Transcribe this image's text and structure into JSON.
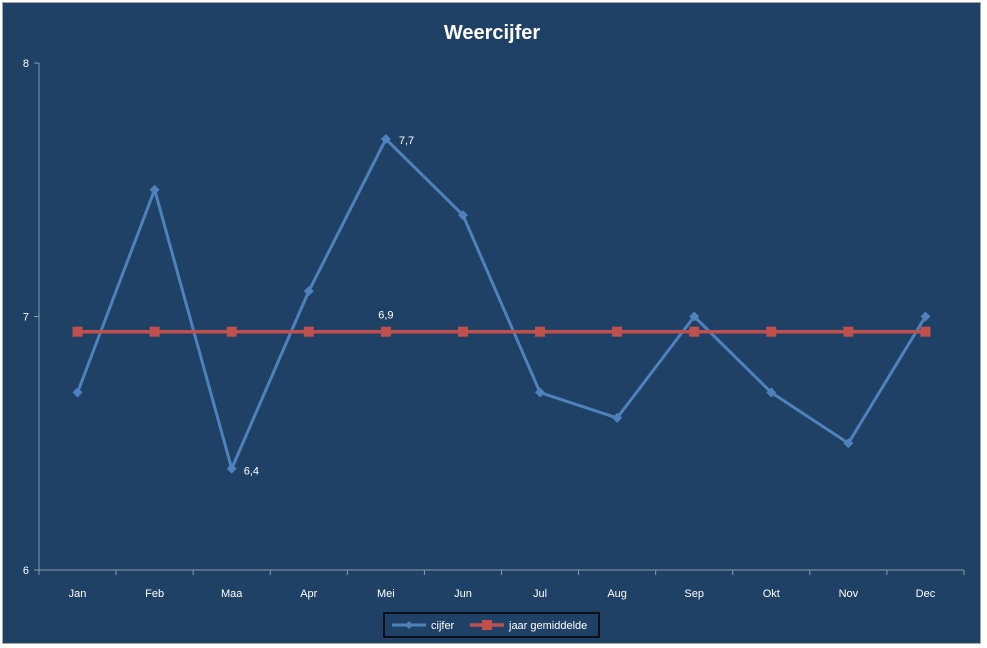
{
  "chart_data": {
    "type": "line",
    "title": "Weercijfer",
    "xlabel": "",
    "ylabel": "",
    "categories": [
      "Jan",
      "Feb",
      "Maa",
      "Apr",
      "Mei",
      "Jun",
      "Jul",
      "Aug",
      "Sep",
      "Okt",
      "Nov",
      "Dec"
    ],
    "ylim": [
      6,
      8
    ],
    "yticks": [
      "6",
      "7",
      "8"
    ],
    "grid": false,
    "legend_position": "bottom",
    "series": [
      {
        "name": "cijfer",
        "color": "#4f81bd",
        "marker": "diamond",
        "values": [
          6.7,
          7.5,
          6.4,
          7.1,
          7.7,
          7.4,
          6.7,
          6.6,
          7.0,
          6.7,
          6.5,
          7.0
        ]
      },
      {
        "name": "jaar gemiddelde",
        "color": "#c0504d",
        "marker": "square",
        "values": [
          6.94,
          6.94,
          6.94,
          6.94,
          6.94,
          6.94,
          6.94,
          6.94,
          6.94,
          6.94,
          6.94,
          6.94
        ]
      }
    ],
    "annotations": [
      {
        "series": 0,
        "index": 2,
        "text": "6,4"
      },
      {
        "series": 0,
        "index": 4,
        "text": "7,7"
      },
      {
        "series": 1,
        "index": 4,
        "text": "6,9"
      }
    ]
  }
}
